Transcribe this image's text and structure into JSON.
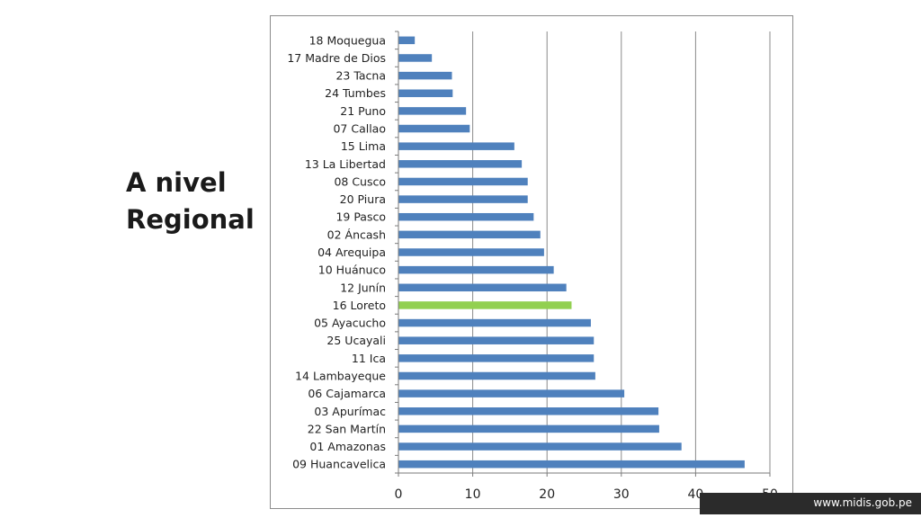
{
  "slide": {
    "title_line1": "A nivel",
    "title_line2": "Regional",
    "footer_url": "www.midis.gob.pe"
  },
  "chart_data": {
    "type": "bar",
    "orientation": "horizontal",
    "categories": [
      "18 Moquegua",
      "17 Madre de Dios",
      "23 Tacna",
      "24 Tumbes",
      "21 Puno",
      "07 Callao",
      "15 Lima",
      "13 La Libertad",
      "08 Cusco",
      "20 Piura",
      "19 Pasco",
      "02 Áncash",
      "04 Arequipa",
      "10 Huánuco",
      "12 Junín",
      "16 Loreto",
      "05 Ayacucho",
      "25 Ucayali",
      "11 Ica",
      "14 Lambayeque",
      "06 Cajamarca",
      "03 Apurímac",
      "22 San Martín",
      "01 Amazonas",
      "09 Huancavelica"
    ],
    "values": [
      2.2,
      4.5,
      7.2,
      7.3,
      9.1,
      9.6,
      15.6,
      16.6,
      17.4,
      17.4,
      18.2,
      19.1,
      19.6,
      20.9,
      22.6,
      23.3,
      25.9,
      26.3,
      26.3,
      26.5,
      30.4,
      35.0,
      35.1,
      38.1,
      46.6
    ],
    "highlight_category": "16 Loreto",
    "bar_color": "#4f81bd",
    "highlight_color": "#92d050",
    "xlim": [
      0,
      50
    ],
    "x_ticks": [
      0,
      10,
      20,
      30,
      40,
      50
    ],
    "grid": "vertical major gridlines"
  }
}
